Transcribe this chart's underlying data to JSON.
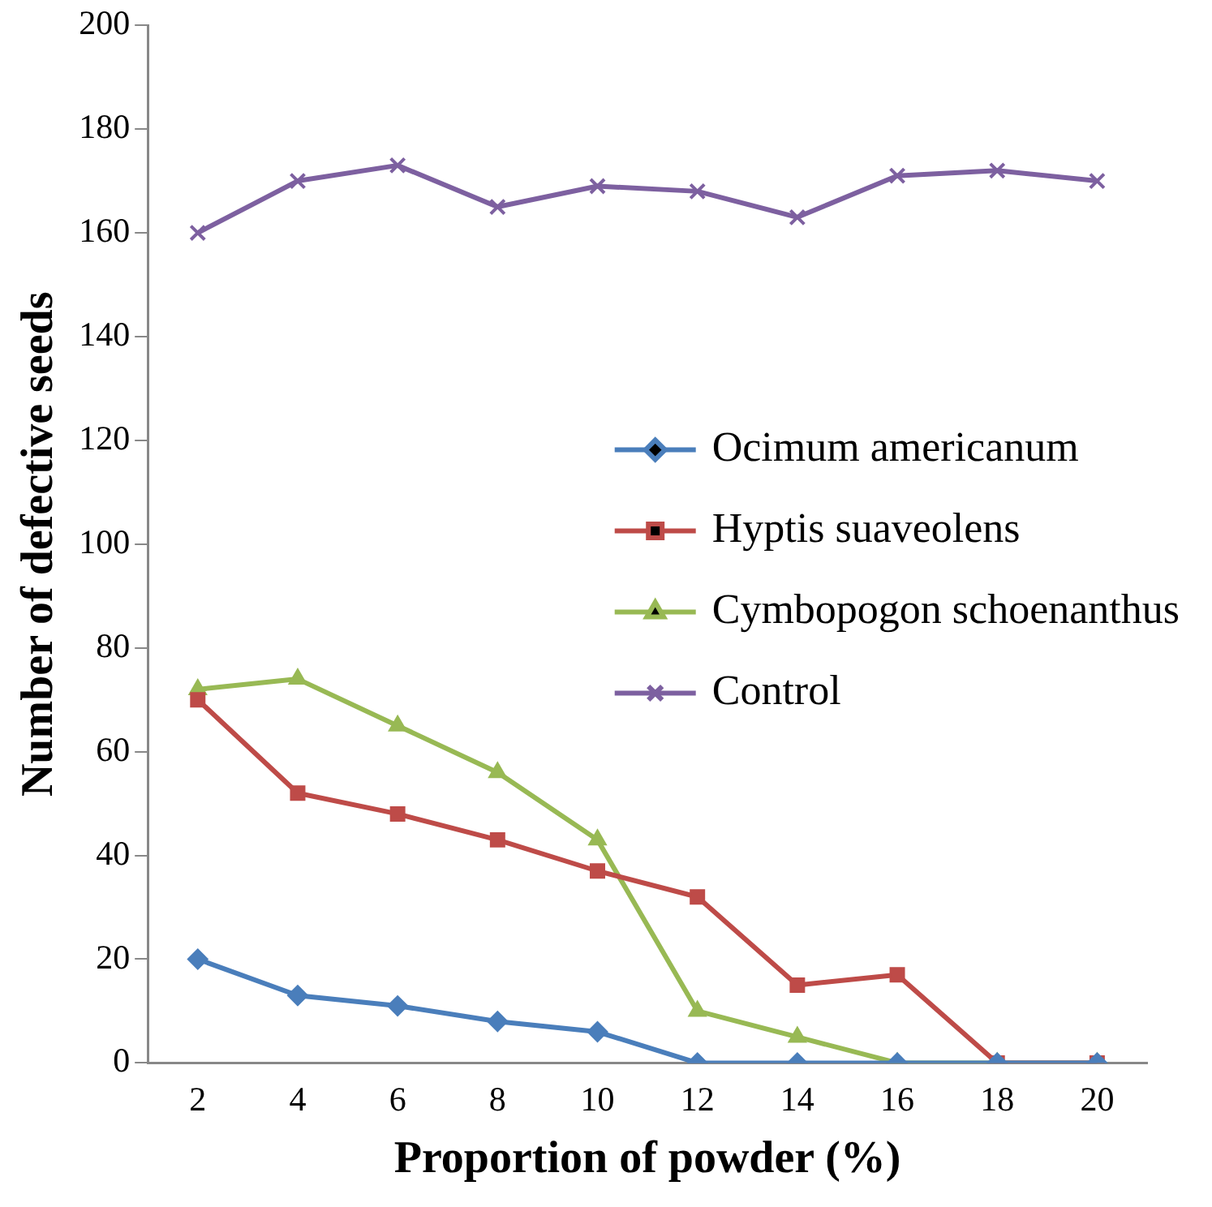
{
  "chart_data": {
    "type": "line",
    "xlabel": "Proportion of powder (%)",
    "ylabel": "Number of defective seeds",
    "categories": [
      "2",
      "4",
      "6",
      "8",
      "10",
      "12",
      "14",
      "16",
      "18",
      "20"
    ],
    "ylim": [
      0,
      200
    ],
    "yticks": [
      0,
      20,
      40,
      60,
      80,
      100,
      120,
      140,
      160,
      180,
      200
    ],
    "grid": false,
    "legend": "right",
    "line_style": "solid",
    "series": [
      {
        "name": "Ocimum americanum",
        "color": "#4a7ebb",
        "marker": "diamond",
        "values": [
          20,
          13,
          11,
          8,
          6,
          0,
          0,
          0,
          0,
          0
        ]
      },
      {
        "name": "Hyptis suaveolens",
        "color": "#be4b48",
        "marker": "square",
        "values": [
          70,
          52,
          48,
          43,
          37,
          32,
          15,
          17,
          0,
          0
        ]
      },
      {
        "name": "Cymbopogon schoenanthus",
        "color": "#98b954",
        "marker": "triangle",
        "values": [
          72,
          74,
          65,
          56,
          43,
          10,
          5,
          0,
          0,
          0
        ]
      },
      {
        "name": "Control",
        "color": "#7d60a0",
        "marker": "cross",
        "values": [
          160,
          170,
          173,
          165,
          169,
          168,
          163,
          171,
          172,
          170
        ]
      }
    ]
  }
}
